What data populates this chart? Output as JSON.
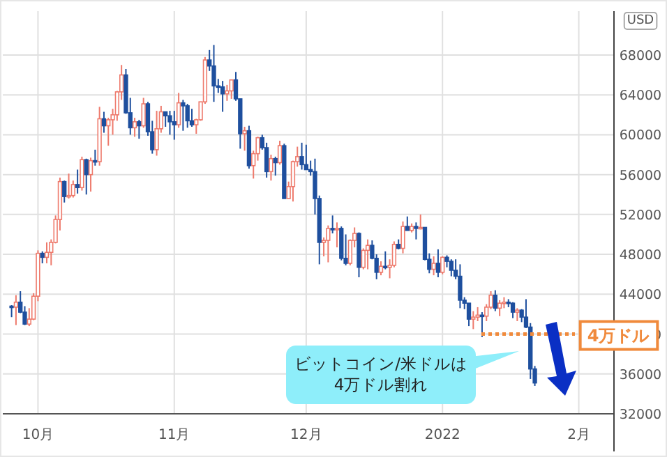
{
  "chart_data": {
    "type": "candlestick",
    "ylabel": "USD",
    "grid": true,
    "xlim": [
      "2021-09-23",
      "2022-02-09"
    ],
    "ylim": [
      32000,
      72400
    ],
    "xticks": [
      {
        "value": "2021-10-01",
        "label": "10月"
      },
      {
        "value": "2021-11-01",
        "label": "11月"
      },
      {
        "value": "2021-12-01",
        "label": "12月"
      },
      {
        "value": "2022-01-01",
        "label": "2022"
      },
      {
        "value": "2022-02-01",
        "label": "2月"
      }
    ],
    "yticks": [
      32000,
      36000,
      40000,
      44000,
      48000,
      52000,
      56000,
      60000,
      64000,
      68000
    ],
    "ref_lines": [
      {
        "axis": "y",
        "value": 40000,
        "label": "4万ドル",
        "color": "#f08a3c",
        "line_style": "dotted"
      }
    ],
    "annotations": [
      "ビットコイン/米ドルは\n4万ドル割れ"
    ],
    "x": [
      "2021-09-25",
      "2021-09-26",
      "2021-09-27",
      "2021-09-28",
      "2021-09-29",
      "2021-09-30",
      "2021-10-01",
      "2021-10-02",
      "2021-10-03",
      "2021-10-04",
      "2021-10-05",
      "2021-10-06",
      "2021-10-07",
      "2021-10-08",
      "2021-10-09",
      "2021-10-10",
      "2021-10-11",
      "2021-10-12",
      "2021-10-13",
      "2021-10-14",
      "2021-10-15",
      "2021-10-16",
      "2021-10-17",
      "2021-10-18",
      "2021-10-19",
      "2021-10-20",
      "2021-10-21",
      "2021-10-22",
      "2021-10-23",
      "2021-10-24",
      "2021-10-25",
      "2021-10-26",
      "2021-10-27",
      "2021-10-28",
      "2021-10-29",
      "2021-10-30",
      "2021-10-31",
      "2021-11-01",
      "2021-11-02",
      "2021-11-03",
      "2021-11-04",
      "2021-11-05",
      "2021-11-06",
      "2021-11-07",
      "2021-11-08",
      "2021-11-09",
      "2021-11-10",
      "2021-11-11",
      "2021-11-12",
      "2021-11-13",
      "2021-11-14",
      "2021-11-15",
      "2021-11-16",
      "2021-11-17",
      "2021-11-18",
      "2021-11-19",
      "2021-11-20",
      "2021-11-21",
      "2021-11-22",
      "2021-11-23",
      "2021-11-24",
      "2021-11-25",
      "2021-11-26",
      "2021-11-27",
      "2021-11-28",
      "2021-11-29",
      "2021-11-30",
      "2021-12-01",
      "2021-12-02",
      "2021-12-03",
      "2021-12-04",
      "2021-12-05",
      "2021-12-06",
      "2021-12-07",
      "2021-12-08",
      "2021-12-09",
      "2021-12-10",
      "2021-12-11",
      "2021-12-12",
      "2021-12-13",
      "2021-12-14",
      "2021-12-15",
      "2021-12-16",
      "2021-12-17",
      "2021-12-18",
      "2021-12-19",
      "2021-12-20",
      "2021-12-21",
      "2021-12-22",
      "2021-12-23",
      "2021-12-24",
      "2021-12-25",
      "2021-12-26",
      "2021-12-27",
      "2021-12-28",
      "2021-12-29",
      "2021-12-30",
      "2021-12-31",
      "2022-01-01",
      "2022-01-02",
      "2022-01-03",
      "2022-01-04",
      "2022-01-05",
      "2022-01-06",
      "2022-01-07",
      "2022-01-08",
      "2022-01-09",
      "2022-01-10",
      "2022-01-11",
      "2022-01-12",
      "2022-01-13",
      "2022-01-14",
      "2022-01-15",
      "2022-01-16",
      "2022-01-17",
      "2022-01-18",
      "2022-01-19",
      "2022-01-20",
      "2022-01-21",
      "2022-01-22"
    ],
    "ohlc": [
      [
        42800,
        42900,
        41700,
        42700
      ],
      [
        42700,
        43900,
        40900,
        43200
      ],
      [
        43200,
        44300,
        42100,
        42200
      ],
      [
        42200,
        42800,
        40900,
        41000
      ],
      [
        41000,
        42600,
        40800,
        41500
      ],
      [
        41500,
        44100,
        41400,
        43800
      ],
      [
        43800,
        48400,
        43300,
        48100
      ],
      [
        48100,
        48300,
        47100,
        47700
      ],
      [
        47700,
        49200,
        47100,
        48200
      ],
      [
        48200,
        49500,
        46900,
        49200
      ],
      [
        49200,
        51900,
        49100,
        51500
      ],
      [
        51500,
        55700,
        50400,
        55300
      ],
      [
        55300,
        55400,
        53200,
        53800
      ],
      [
        53800,
        56100,
        53600,
        53900
      ],
      [
        53900,
        55400,
        53700,
        55000
      ],
      [
        55000,
        56500,
        54100,
        54700
      ],
      [
        54700,
        57800,
        54400,
        57500
      ],
      [
        57500,
        57600,
        54000,
        56000
      ],
      [
        56000,
        57700,
        54300,
        57400
      ],
      [
        57400,
        58500,
        56900,
        57300
      ],
      [
        57300,
        62800,
        56900,
        61600
      ],
      [
        61600,
        62300,
        60200,
        60900
      ],
      [
        60900,
        61700,
        58900,
        61500
      ],
      [
        61500,
        62600,
        60000,
        62000
      ],
      [
        62000,
        64400,
        61400,
        64300
      ],
      [
        64300,
        67000,
        63500,
        66000
      ],
      [
        66000,
        66600,
        62100,
        62200
      ],
      [
        62200,
        63700,
        60000,
        60700
      ],
      [
        60700,
        61700,
        59800,
        61300
      ],
      [
        61300,
        61500,
        59600,
        60900
      ],
      [
        60900,
        63700,
        60700,
        63100
      ],
      [
        63100,
        63300,
        59900,
        60300
      ],
      [
        60300,
        61400,
        58100,
        58500
      ],
      [
        58500,
        62400,
        57900,
        60600
      ],
      [
        60600,
        62900,
        60200,
        62300
      ],
      [
        62300,
        62300,
        60800,
        61900
      ],
      [
        61900,
        62400,
        60000,
        61300
      ],
      [
        61300,
        62400,
        59500,
        61000
      ],
      [
        61000,
        64200,
        60700,
        63200
      ],
      [
        63200,
        63500,
        60400,
        62900
      ],
      [
        62900,
        63100,
        60700,
        61400
      ],
      [
        61400,
        62600,
        60800,
        61000
      ],
      [
        61000,
        61600,
        60100,
        61500
      ],
      [
        61500,
        63300,
        61400,
        63300
      ],
      [
        63300,
        67800,
        63100,
        67500
      ],
      [
        67500,
        68500,
        66400,
        66900
      ],
      [
        66900,
        69000,
        63300,
        64900
      ],
      [
        64900,
        65600,
        64200,
        64800
      ],
      [
        64800,
        65400,
        62300,
        64100
      ],
      [
        64100,
        65000,
        63400,
        64400
      ],
      [
        64400,
        65500,
        63600,
        65500
      ],
      [
        65500,
        66300,
        63400,
        63600
      ],
      [
        63600,
        63600,
        58600,
        60100
      ],
      [
        60100,
        60800,
        58400,
        60400
      ],
      [
        60400,
        60900,
        56600,
        56900
      ],
      [
        56900,
        58400,
        55600,
        58100
      ],
      [
        58100,
        59800,
        57400,
        59700
      ],
      [
        59700,
        60000,
        58500,
        58700
      ],
      [
        58700,
        59200,
        55700,
        56300
      ],
      [
        56300,
        58000,
        55400,
        57600
      ],
      [
        57600,
        57800,
        55900,
        57200
      ],
      [
        57200,
        59400,
        57000,
        58900
      ],
      [
        58900,
        59100,
        53600,
        53600
      ],
      [
        53600,
        55300,
        53600,
        54800
      ],
      [
        54800,
        57400,
        53300,
        57300
      ],
      [
        57300,
        58800,
        56800,
        57800
      ],
      [
        57800,
        59200,
        56500,
        57000
      ],
      [
        57000,
        59000,
        56500,
        56500
      ],
      [
        56500,
        57400,
        55900,
        56300
      ],
      [
        56300,
        57600,
        52000,
        53600
      ],
      [
        53600,
        53900,
        47000,
        49200
      ],
      [
        49200,
        49700,
        47800,
        49400
      ],
      [
        49400,
        50900,
        47200,
        50600
      ],
      [
        50600,
        51900,
        50100,
        50500
      ],
      [
        50500,
        51200,
        48700,
        50600
      ],
      [
        50600,
        50800,
        47400,
        47600
      ],
      [
        47600,
        50000,
        46900,
        47100
      ],
      [
        47100,
        49500,
        46900,
        49400
      ],
      [
        49400,
        50700,
        48700,
        50100
      ],
      [
        50100,
        50200,
        45700,
        46700
      ],
      [
        46700,
        48600,
        46500,
        48400
      ],
      [
        48400,
        49500,
        46500,
        48900
      ],
      [
        48900,
        49400,
        47500,
        47600
      ],
      [
        47600,
        48000,
        45500,
        46200
      ],
      [
        46200,
        47300,
        45900,
        46800
      ],
      [
        46800,
        48300,
        46500,
        46700
      ],
      [
        46700,
        47500,
        45600,
        46900
      ],
      [
        46900,
        49300,
        46700,
        49000
      ],
      [
        49000,
        49500,
        48500,
        48600
      ],
      [
        48600,
        51300,
        48100,
        50800
      ],
      [
        50800,
        51800,
        50400,
        50400
      ],
      [
        50400,
        51100,
        50200,
        50800
      ],
      [
        50800,
        51200,
        49500,
        50600
      ],
      [
        50600,
        52000,
        50500,
        50700
      ],
      [
        50700,
        50700,
        47400,
        47500
      ],
      [
        47500,
        48100,
        46100,
        46500
      ],
      [
        46500,
        47800,
        45900,
        47100
      ],
      [
        47100,
        48500,
        45700,
        46200
      ],
      [
        46200,
        47800,
        46000,
        47700
      ],
      [
        47700,
        47900,
        46700,
        47300
      ],
      [
        47300,
        47500,
        45800,
        46400
      ],
      [
        46400,
        47500,
        45500,
        45800
      ],
      [
        45800,
        47000,
        42600,
        43400
      ],
      [
        43400,
        43700,
        42500,
        43100
      ],
      [
        43100,
        43100,
        40800,
        41500
      ],
      [
        41500,
        42300,
        40500,
        41700
      ],
      [
        41700,
        42700,
        41300,
        41900
      ],
      [
        41900,
        42200,
        39700,
        41800
      ],
      [
        41800,
        43000,
        41300,
        42700
      ],
      [
        42700,
        44300,
        42500,
        43900
      ],
      [
        43900,
        44400,
        42300,
        42600
      ],
      [
        42600,
        43400,
        41800,
        43100
      ],
      [
        43100,
        43700,
        42600,
        43200
      ],
      [
        43200,
        43500,
        42700,
        43100
      ],
      [
        43100,
        43200,
        41600,
        42200
      ],
      [
        42200,
        42600,
        41300,
        42400
      ],
      [
        42400,
        42500,
        41200,
        41700
      ],
      [
        41700,
        43500,
        40600,
        40700
      ],
      [
        40700,
        41100,
        35500,
        36500
      ],
      [
        36500,
        36800,
        34800,
        35100
      ]
    ]
  }
}
